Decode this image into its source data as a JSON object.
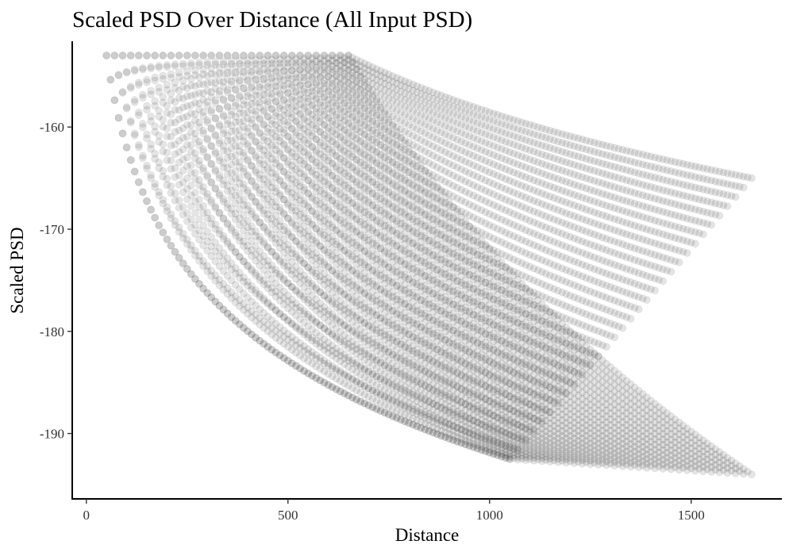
{
  "chart_data": {
    "type": "scatter",
    "title": "Scaled PSD Over Distance (All Input PSD)",
    "xlabel": "Distance",
    "ylabel": "Scaled PSD",
    "xlim": [
      -35,
      1725
    ],
    "ylim": [
      -196.4,
      -151.6
    ],
    "x_ticks": [
      0,
      500,
      1000,
      1500
    ],
    "y_ticks": [
      -190,
      -180,
      -170,
      -160
    ],
    "x_tick_labels": [
      "0",
      "500",
      "1000",
      "1500"
    ],
    "y_tick_labels": [
      "-190",
      "-180",
      "-170",
      "-160"
    ],
    "grid": false,
    "legend": "none",
    "point_color": "#000000",
    "point_alpha": 0.1,
    "series_description": {
      "count": 31,
      "start_distance_first": 50,
      "start_distance_step": 20,
      "end_distance_first": 1050,
      "end_distance_last": 1650,
      "point_spacing": 10,
      "psd_at_start": -153,
      "psd_end_first": -192.5,
      "psd_end_last_range": [
        -165,
        -194
      ]
    }
  }
}
